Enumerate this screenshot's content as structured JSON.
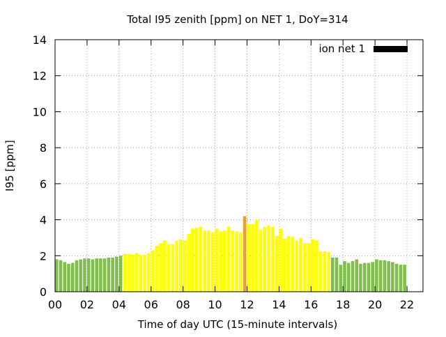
{
  "chart_data": {
    "type": "bar",
    "title": "Total I95 zenith [ppm] on NET 1, DoY=314",
    "xlabel": "Time of day UTC (15-minute intervals)",
    "ylabel": "I95 [ppm]",
    "xlim": [
      0,
      23
    ],
    "ylim": [
      0,
      14
    ],
    "x_ticks": [
      "00",
      "02",
      "04",
      "06",
      "08",
      "10",
      "12",
      "14",
      "16",
      "18",
      "20",
      "22"
    ],
    "y_ticks": [
      "0",
      "2",
      "4",
      "6",
      "8",
      "10",
      "12",
      "14"
    ],
    "grid": true,
    "legend": {
      "entries": [
        {
          "name": "ion net 1",
          "color": "#000000"
        }
      ],
      "position": "top-right"
    },
    "colors": {
      "low": "#7fbf4a",
      "medium": "#ffff00",
      "high": "#f0a020"
    },
    "series": [
      {
        "name": "ion net 1",
        "values": [
          1.8,
          1.75,
          1.65,
          1.55,
          1.6,
          1.75,
          1.8,
          1.85,
          1.85,
          1.8,
          1.85,
          1.85,
          1.85,
          1.9,
          1.9,
          1.95,
          2.0,
          2.1,
          2.1,
          2.05,
          2.15,
          2.05,
          2.05,
          2.15,
          2.3,
          2.55,
          2.7,
          2.85,
          2.65,
          2.65,
          2.85,
          2.9,
          2.85,
          3.2,
          3.5,
          3.55,
          3.6,
          3.4,
          3.4,
          3.3,
          3.5,
          3.35,
          3.4,
          3.6,
          3.4,
          3.35,
          3.3,
          4.2,
          3.75,
          3.75,
          4.0,
          3.45,
          3.6,
          3.7,
          3.6,
          3.1,
          3.5,
          2.95,
          3.1,
          3.05,
          2.85,
          3.0,
          2.7,
          2.7,
          2.9,
          2.85,
          2.25,
          2.25,
          2.2,
          1.9,
          1.9,
          1.5,
          1.7,
          1.6,
          1.7,
          1.8,
          1.55,
          1.6,
          1.6,
          1.65,
          1.8,
          1.75,
          1.75,
          1.7,
          1.65,
          1.55,
          1.5,
          1.5
        ],
        "levels": [
          "low",
          "low",
          "low",
          "low",
          "low",
          "low",
          "low",
          "low",
          "low",
          "low",
          "low",
          "low",
          "low",
          "low",
          "low",
          "low",
          "low",
          "medium",
          "medium",
          "medium",
          "medium",
          "medium",
          "medium",
          "medium",
          "medium",
          "medium",
          "medium",
          "medium",
          "medium",
          "medium",
          "medium",
          "medium",
          "medium",
          "medium",
          "medium",
          "medium",
          "medium",
          "medium",
          "medium",
          "medium",
          "medium",
          "medium",
          "medium",
          "medium",
          "medium",
          "medium",
          "medium",
          "high",
          "medium",
          "medium",
          "medium",
          "medium",
          "medium",
          "medium",
          "medium",
          "medium",
          "medium",
          "medium",
          "medium",
          "medium",
          "medium",
          "medium",
          "medium",
          "medium",
          "medium",
          "medium",
          "medium",
          "medium",
          "medium",
          "low",
          "low",
          "low",
          "low",
          "low",
          "low",
          "low",
          "low",
          "low",
          "low",
          "low",
          "low",
          "low",
          "low",
          "low",
          "low",
          "low",
          "low",
          "low"
        ]
      }
    ]
  }
}
